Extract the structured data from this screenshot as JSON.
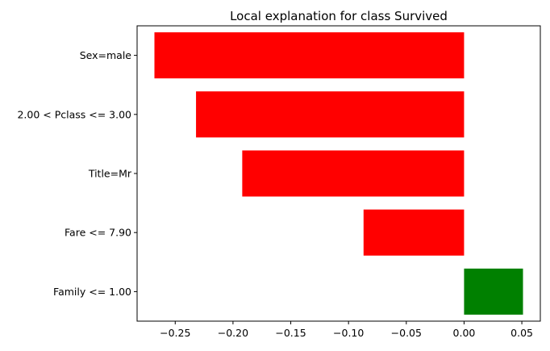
{
  "chart_data": {
    "type": "bar",
    "orientation": "horizontal",
    "title": "Local explanation for class Survived",
    "xlabel": "",
    "ylabel": "",
    "categories": [
      "Sex=male",
      "2.00 < Pclass <= 3.00",
      "Title=Mr",
      "Fare <= 7.90",
      "Family <= 1.00"
    ],
    "values": [
      -0.268,
      -0.232,
      -0.192,
      -0.087,
      0.051
    ],
    "colors": [
      "#ff0000",
      "#ff0000",
      "#ff0000",
      "#ff0000",
      "#008000"
    ],
    "xlim": [
      -0.283,
      0.066
    ],
    "xticks": [
      -0.25,
      -0.2,
      -0.15,
      -0.1,
      -0.05,
      0.0,
      0.05
    ],
    "xtick_labels": [
      "−0.25",
      "−0.20",
      "−0.15",
      "−0.10",
      "−0.05",
      "0.00",
      "0.05"
    ],
    "grid": false,
    "legend": "none",
    "colors_legend": {
      "negative": "#ff0000",
      "positive": "#008000"
    }
  }
}
